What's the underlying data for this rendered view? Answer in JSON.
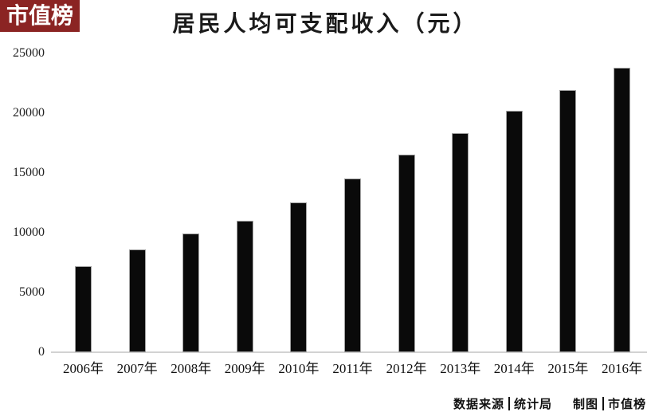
{
  "logo": {
    "text": "市值榜",
    "bg_color": "#8b2423",
    "text_color": "#ffffff"
  },
  "chart_data": {
    "type": "bar",
    "title": "居民人均可支配收入（元）",
    "categories": [
      "2006年",
      "2007年",
      "2008年",
      "2009年",
      "2010年",
      "2011年",
      "2012年",
      "2013年",
      "2014年",
      "2015年",
      "2016年"
    ],
    "values": [
      7229,
      8583,
      9957,
      10977,
      12520,
      14551,
      16510,
      18311,
      20167,
      21966,
      23821
    ],
    "xlabel": "",
    "ylabel": "",
    "ylim": [
      0,
      25000
    ],
    "yticks": [
      0,
      5000,
      10000,
      15000,
      20000,
      25000
    ],
    "bar_color": "#0a0a0a",
    "grid": false,
    "legend": "none",
    "baseline_color": "#d2d2d2"
  },
  "footer": {
    "source_label": "数据来源",
    "source_value": "统计局",
    "credit_label": "制图",
    "credit_value": "市值榜"
  }
}
